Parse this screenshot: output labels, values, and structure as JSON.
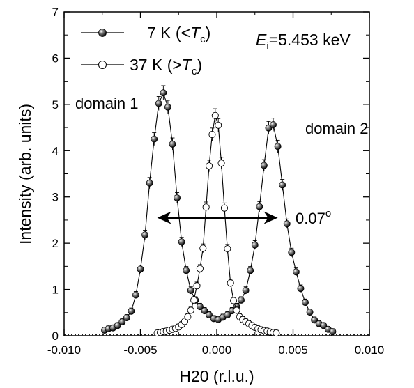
{
  "chart_data": {
    "type": "scatter",
    "xlabel": "H20 (r.l.u.)",
    "ylabel": "Intensity (arb. units)",
    "xlim": [
      -0.01,
      0.01
    ],
    "ylim": [
      0,
      7
    ],
    "xticks": [
      "-0.010",
      "-0.005",
      "0.000",
      "0.005",
      "0.010"
    ],
    "yticks": [
      "0",
      "1",
      "2",
      "3",
      "4",
      "5",
      "6",
      "7"
    ],
    "legend": {
      "placement": "top-left",
      "entries": [
        {
          "marker": "filled",
          "label_main": "7 K (<",
          "label_italic": "T",
          "label_sub": "c",
          "label_close": ")"
        },
        {
          "marker": "open",
          "label_main": "37 K (>",
          "label_italic": "T",
          "label_sub": "c",
          "label_close": ")"
        }
      ]
    },
    "energy_label": {
      "italic": "E",
      "sub": "i",
      "rest": "=5.453 keV"
    },
    "annotations": {
      "domain1": "domain 1",
      "domain2": "domain 2",
      "width_value": "0.07",
      "width_unit": "o"
    },
    "width_arrow": {
      "x_start": -0.0039,
      "x_end": 0.004,
      "y": 2.55
    },
    "baseline": 0.02,
    "series": [
      {
        "name": "7 K (<Tc)",
        "marker": "filled",
        "x": [
          -0.00735,
          -0.0071,
          -0.0068,
          -0.0065,
          -0.0062,
          -0.0059,
          -0.0056,
          -0.0053,
          -0.005,
          -0.0047,
          -0.0044,
          -0.0041,
          -0.0038,
          -0.0035,
          -0.0032,
          -0.0029,
          -0.0026,
          -0.0023,
          -0.002,
          -0.0017,
          -0.0014,
          -0.0011,
          -0.0008,
          -0.0005,
          -0.0002,
          0.0001,
          0.0004,
          0.0007,
          0.001,
          0.0013,
          0.0016,
          0.0019,
          0.0022,
          0.0025,
          0.0028,
          0.0031,
          0.0034,
          0.0037,
          0.004,
          0.0043,
          0.0046,
          0.0049,
          0.0052,
          0.0055,
          0.0058,
          0.0061,
          0.0064,
          0.0067,
          0.007,
          0.0073,
          0.0076
        ],
        "y": [
          0.12,
          0.15,
          0.17,
          0.22,
          0.3,
          0.39,
          0.53,
          0.88,
          1.44,
          2.18,
          3.3,
          4.25,
          5.02,
          5.25,
          4.94,
          4.14,
          2.98,
          2.03,
          1.41,
          0.98,
          0.77,
          0.63,
          0.54,
          0.45,
          0.37,
          0.35,
          0.4,
          0.45,
          0.54,
          0.63,
          0.77,
          0.98,
          1.41,
          1.96,
          2.79,
          3.68,
          4.49,
          4.56,
          4.09,
          3.26,
          2.42,
          1.8,
          1.38,
          1.02,
          0.72,
          0.51,
          0.34,
          0.26,
          0.22,
          0.14,
          0.09
        ]
      },
      {
        "name": "37 K (>Tc)",
        "marker": "open",
        "x": [
          -0.0039,
          -0.0037,
          -0.0035,
          -0.0033,
          -0.0031,
          -0.0029,
          -0.0027,
          -0.0025,
          -0.0023,
          -0.0021,
          -0.0019,
          -0.0017,
          -0.0015,
          -0.0013,
          -0.0011,
          -0.0009,
          -0.0007,
          -0.0005,
          -0.0003,
          -0.0001,
          0.0001,
          0.0003,
          0.0005,
          0.0007,
          0.0009,
          0.0011,
          0.0013,
          0.0015,
          0.0017,
          0.0019,
          0.0021,
          0.0023,
          0.0025,
          0.0027,
          0.0029,
          0.0031,
          0.0033,
          0.0035,
          0.0037,
          0.0039
        ],
        "y": [
          0.06,
          0.07,
          0.09,
          0.1,
          0.12,
          0.14,
          0.16,
          0.19,
          0.24,
          0.31,
          0.41,
          0.55,
          0.77,
          1.08,
          1.45,
          1.89,
          2.78,
          3.67,
          4.35,
          4.76,
          4.55,
          3.73,
          2.76,
          1.88,
          1.14,
          0.76,
          0.55,
          0.41,
          0.35,
          0.3,
          0.26,
          0.22,
          0.18,
          0.15,
          0.13,
          0.11,
          0.1,
          0.08,
          0.07,
          0.06
        ]
      }
    ]
  }
}
